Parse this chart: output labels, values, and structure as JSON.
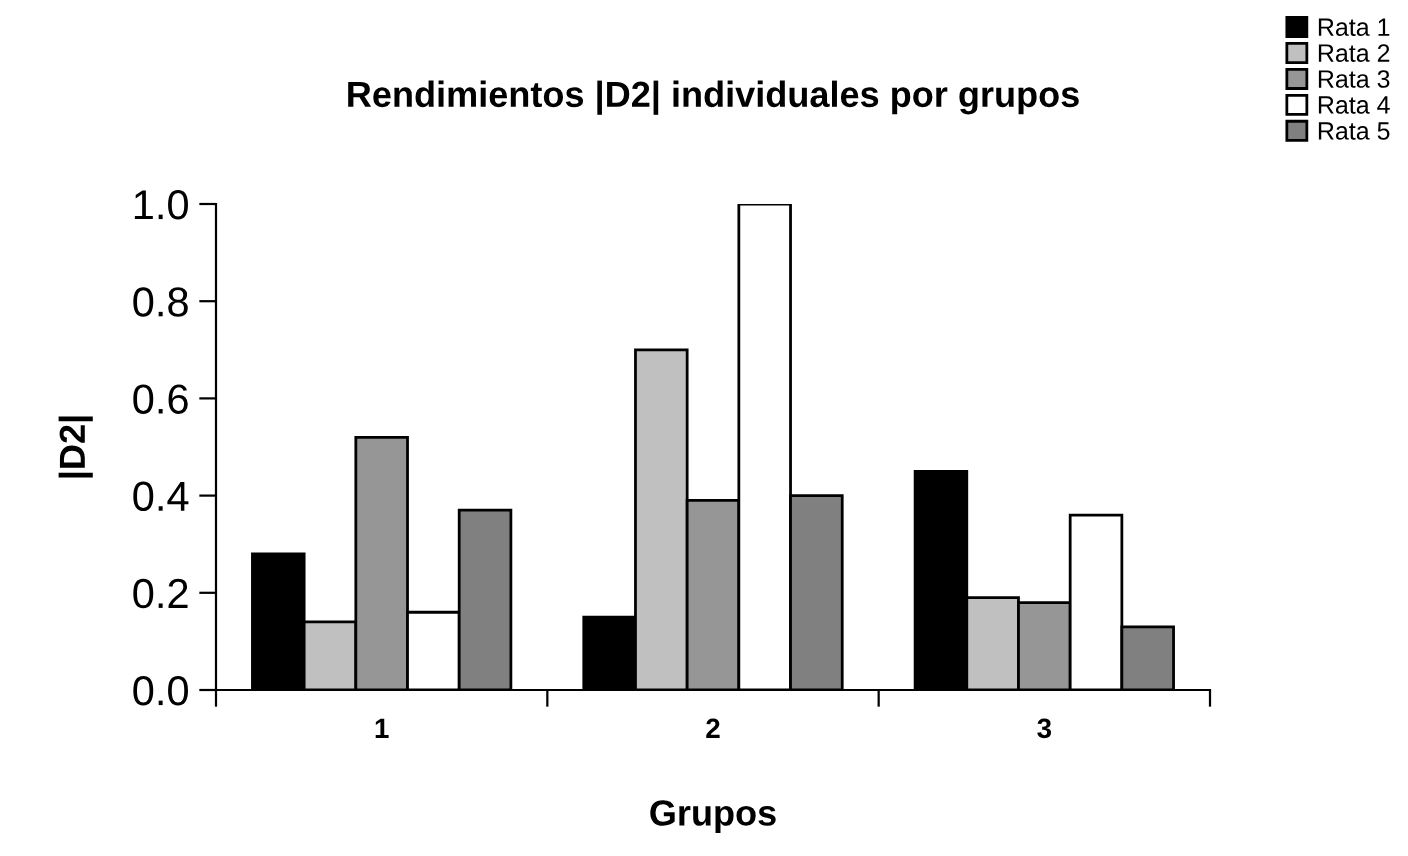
{
  "chart_data": {
    "type": "bar",
    "title": "Rendimientos |D2| individuales por grupos",
    "xlabel": "Grupos",
    "ylabel": "|D2|",
    "categories": [
      "1",
      "2",
      "3"
    ],
    "series": [
      {
        "name": "Rata 1",
        "color": "#000000",
        "values": [
          0.28,
          0.15,
          0.45
        ]
      },
      {
        "name": "Rata 2",
        "color": "#c0c0c0",
        "values": [
          0.14,
          0.7,
          0.19
        ]
      },
      {
        "name": "Rata 3",
        "color": "#969696",
        "values": [
          0.52,
          0.39,
          0.18
        ]
      },
      {
        "name": "Rata 4",
        "color": "#ffffff",
        "values": [
          0.16,
          1.0,
          0.36
        ]
      },
      {
        "name": "Rata 5",
        "color": "#808080",
        "values": [
          0.37,
          0.4,
          0.13
        ]
      }
    ],
    "ylim": [
      0,
      1.0
    ],
    "yticks": [
      {
        "value": 0,
        "label": "0.0"
      },
      {
        "value": 0.2,
        "label": "0.2"
      },
      {
        "value": 0.4,
        "label": "0.4"
      },
      {
        "value": 0.6,
        "label": "0.6"
      },
      {
        "value": 0.8,
        "label": "0.8"
      },
      {
        "value": 1.0,
        "label": "1.0"
      }
    ],
    "grid": false,
    "legend": "top right"
  }
}
